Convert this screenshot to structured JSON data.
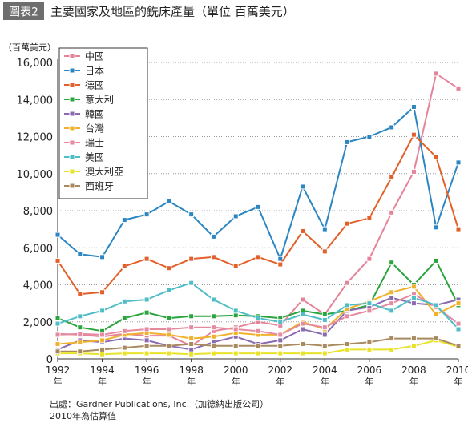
{
  "title_tag": "圖表2",
  "title_text": "主要國家及地區的銑床產量（單位 百萬美元）",
  "source_line": "出處：Gardner Publications, Inc.（加德納出版公司）",
  "note_line": "2010年為估算值",
  "colors": {
    "tag_bg": "#6e6e6e",
    "tag_fg": "#ffffff",
    "axis": "#333333",
    "grid": "#9a9a9a",
    "text": "#222222"
  },
  "chart_data": {
    "type": "line",
    "title": "主要國家及地區的銑床產量（單位 百萬美元）",
    "ylabel": "（百萬美元）",
    "xlabel": "",
    "ylim": [
      0,
      16000
    ],
    "yticks": [
      0,
      2000,
      4000,
      6000,
      8000,
      10000,
      12000,
      14000,
      16000
    ],
    "ytick_labels": [
      "0",
      "2,000",
      "4,000",
      "6,000",
      "8,000",
      "10,000",
      "12,000",
      "14,000",
      "16,000"
    ],
    "x": [
      1992,
      1993,
      1994,
      1995,
      1996,
      1997,
      1998,
      1999,
      2000,
      2001,
      2002,
      2003,
      2004,
      2005,
      2006,
      2007,
      2008,
      2009,
      2010
    ],
    "xtick_years": [
      1992,
      1994,
      1996,
      1998,
      2000,
      2002,
      2004,
      2006,
      2008,
      2010
    ],
    "xtick_suffix": "年",
    "grid": "horizontal-dotted",
    "legend_position": "top-left",
    "series": [
      {
        "name": "中國",
        "color": "#e5839a",
        "values": [
          1350,
          1300,
          1200,
          1350,
          1250,
          1250,
          700,
          1500,
          1700,
          2000,
          1800,
          3200,
          2400,
          4100,
          5400,
          7900,
          10100,
          15400,
          14600
        ]
      },
      {
        "name": "日本",
        "color": "#2b86c2",
        "values": [
          6700,
          5650,
          5500,
          7500,
          7800,
          8500,
          7800,
          6600,
          7700,
          8200,
          5400,
          9300,
          7000,
          11700,
          12000,
          12500,
          13600,
          7100,
          10600
        ]
      },
      {
        "name": "德國",
        "color": "#e3602a",
        "values": [
          5300,
          3500,
          3600,
          5000,
          5400,
          4900,
          5400,
          5500,
          5000,
          5500,
          5100,
          6900,
          5800,
          7300,
          7600,
          9800,
          12100,
          10900,
          7000
        ]
      },
      {
        "name": "意大利",
        "color": "#2aa43d",
        "values": [
          2200,
          1700,
          1500,
          2200,
          2500,
          2200,
          2300,
          2300,
          2350,
          2300,
          2200,
          2600,
          2400,
          2600,
          2900,
          5200,
          4000,
          5300,
          2900
        ]
      },
      {
        "name": "韓國",
        "color": "#8b6bb0",
        "values": [
          500,
          1000,
          900,
          1100,
          1000,
          700,
          500,
          900,
          1200,
          800,
          1000,
          1600,
          1300,
          2600,
          2800,
          3300,
          3000,
          2900,
          3200
        ]
      },
      {
        "name": "台灣",
        "color": "#f0b22c",
        "values": [
          800,
          900,
          1000,
          1300,
          1400,
          1300,
          1100,
          1200,
          1400,
          1300,
          1300,
          2000,
          1600,
          2700,
          3100,
          3600,
          3900,
          2400,
          3000
        ]
      },
      {
        "name": "瑞士",
        "color": "#e58aa0",
        "values": [
          1300,
          1350,
          1300,
          1500,
          1600,
          1600,
          1700,
          1700,
          1600,
          1500,
          1300,
          1900,
          1700,
          2300,
          2600,
          3000,
          3500,
          2800,
          1900
        ]
      },
      {
        "name": "美國",
        "color": "#4fbdc6",
        "values": [
          1900,
          2300,
          2600,
          3100,
          3200,
          3700,
          4100,
          3200,
          2600,
          2200,
          2000,
          2400,
          2100,
          2900,
          3000,
          2600,
          3300,
          2900,
          1600
        ]
      },
      {
        "name": "澳大利亞",
        "color": "#e8e32a",
        "values": [
          300,
          300,
          250,
          300,
          300,
          300,
          250,
          300,
          300,
          300,
          300,
          300,
          300,
          500,
          500,
          500,
          700,
          1000,
          650
        ]
      },
      {
        "name": "西班牙",
        "color": "#a88a5e",
        "values": [
          400,
          400,
          500,
          600,
          700,
          700,
          800,
          700,
          700,
          700,
          700,
          800,
          700,
          800,
          900,
          1100,
          1100,
          1100,
          700
        ]
      }
    ]
  }
}
